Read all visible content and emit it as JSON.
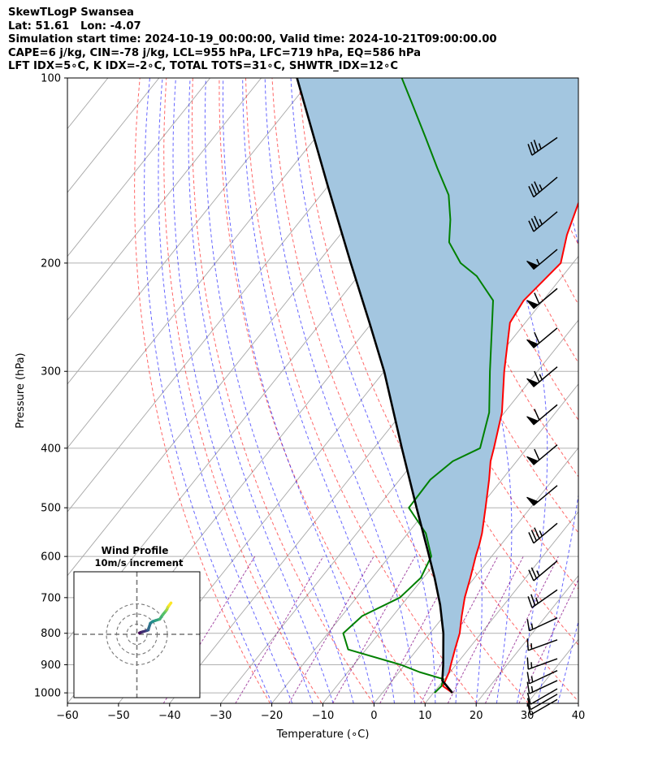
{
  "header": {
    "line1": "SkewTLogP Swansea",
    "line2": "Lat: 51.61   Lon: -4.07",
    "line3": "Simulation start time: 2024-10-19_00:00:00, Valid time: 2024-10-21T09:00:00.00",
    "line4": "CAPE=6 j/kg, CIN=-78 j/kg, LCL=955 hPa, LFC=719 hPa, EQ=586 hPa",
    "line5": "LFT IDX=5∘C, K IDX=-2∘C, TOTAL TOTS=31∘C, SHWTR_IDX=12∘C"
  },
  "colors": {
    "temperature": "#ff0000",
    "dewpoint": "#008000",
    "parcel": "#000000",
    "cape_fill": "#a3c6e0",
    "dry_adiabat": "#ff0000",
    "moist_adiabat": "#0000ff",
    "mixing_ratio": "#800080",
    "isotherm": "#999999"
  },
  "chart_data": {
    "type": "skew-t",
    "xlabel": "Temperature (∘C)",
    "ylabel": "Pressure (hPa)",
    "xlim": [
      -60,
      40
    ],
    "ylim": [
      1040,
      100
    ],
    "x_ticks": [
      "−60",
      "−50",
      "−40",
      "−30",
      "−20",
      "−10",
      "0",
      "10",
      "20",
      "30",
      "40"
    ],
    "x_tick_values": [
      -60,
      -50,
      -40,
      -30,
      -20,
      -10,
      0,
      10,
      20,
      30,
      40
    ],
    "y_ticks": [
      "100",
      "200",
      "300",
      "400",
      "500",
      "600",
      "700",
      "800",
      "900",
      "1000"
    ],
    "y_tick_values": [
      100,
      200,
      300,
      400,
      500,
      600,
      700,
      800,
      900,
      1000
    ],
    "grid": true,
    "series": [
      {
        "key": "temperature",
        "points": [
          [
            1000,
            13.7
          ],
          [
            975,
            10.8
          ],
          [
            950,
            10.3
          ],
          [
            925,
            9.8
          ],
          [
            900,
            9.0
          ],
          [
            850,
            7.4
          ],
          [
            800,
            5.8
          ],
          [
            750,
            3.5
          ],
          [
            700,
            1.2
          ],
          [
            650,
            -0.8
          ],
          [
            600,
            -3.1
          ],
          [
            575,
            -4.2
          ],
          [
            550,
            -5.5
          ],
          [
            500,
            -8.8
          ],
          [
            450,
            -12.5
          ],
          [
            420,
            -15.1
          ],
          [
            400,
            -16.5
          ],
          [
            350,
            -20.5
          ],
          [
            300,
            -26.5
          ],
          [
            250,
            -33.0
          ],
          [
            230,
            -33.8
          ],
          [
            200,
            -32.4
          ],
          [
            180,
            -35.6
          ],
          [
            160,
            -38.3
          ],
          [
            140,
            -40.8
          ],
          [
            125,
            -43.4
          ],
          [
            110,
            -44.9
          ],
          [
            100,
            -45.7
          ]
        ]
      },
      {
        "key": "dewpoint",
        "points": [
          [
            1000,
            10.2
          ],
          [
            975,
            10.5
          ],
          [
            950,
            9.8
          ],
          [
            925,
            4.0
          ],
          [
            900,
            -0.8
          ],
          [
            850,
            -13.5
          ],
          [
            800,
            -17.0
          ],
          [
            750,
            -16.0
          ],
          [
            700,
            -11.5
          ],
          [
            650,
            -10.5
          ],
          [
            600,
            -11.8
          ],
          [
            550,
            -16.5
          ],
          [
            500,
            -23.8
          ],
          [
            450,
            -24.0
          ],
          [
            420,
            -22.5
          ],
          [
            400,
            -19.2
          ],
          [
            350,
            -23.0
          ],
          [
            300,
            -29.3
          ],
          [
            250,
            -36.5
          ],
          [
            230,
            -39.8
          ],
          [
            210,
            -46.8
          ],
          [
            200,
            -52.0
          ],
          [
            185,
            -57.5
          ],
          [
            170,
            -60.8
          ],
          [
            155,
            -65.0
          ],
          [
            140,
            -71.5
          ],
          [
            125,
            -78.5
          ],
          [
            110,
            -86.5
          ],
          [
            100,
            -92.5
          ]
        ]
      },
      {
        "key": "parcel",
        "points": [
          [
            1000,
            13.7
          ],
          [
            955,
            9.8
          ],
          [
            900,
            7.5
          ],
          [
            800,
            2.6
          ],
          [
            719,
            -2.5
          ],
          [
            650,
            -7.8
          ],
          [
            586,
            -13.5
          ],
          [
            500,
            -22.3
          ],
          [
            400,
            -34.5
          ],
          [
            300,
            -50.0
          ],
          [
            250,
            -60.5
          ],
          [
            200,
            -73.5
          ],
          [
            150,
            -90.0
          ],
          [
            100,
            -113.0
          ]
        ]
      }
    ],
    "wind_barbs": [
      {
        "p": 1025,
        "speed_kt": 10,
        "dir_deg": 240
      },
      {
        "p": 1005,
        "speed_kt": 10,
        "dir_deg": 240
      },
      {
        "p": 985,
        "speed_kt": 10,
        "dir_deg": 240
      },
      {
        "p": 955,
        "speed_kt": 15,
        "dir_deg": 245
      },
      {
        "p": 920,
        "speed_kt": 15,
        "dir_deg": 245
      },
      {
        "p": 880,
        "speed_kt": 15,
        "dir_deg": 250
      },
      {
        "p": 820,
        "speed_kt": 15,
        "dir_deg": 250
      },
      {
        "p": 755,
        "speed_kt": 15,
        "dir_deg": 245
      },
      {
        "p": 680,
        "speed_kt": 25,
        "dir_deg": 235
      },
      {
        "p": 610,
        "speed_kt": 25,
        "dir_deg": 230
      },
      {
        "p": 530,
        "speed_kt": 35,
        "dir_deg": 230
      },
      {
        "p": 460,
        "speed_kt": 50,
        "dir_deg": 230
      },
      {
        "p": 395,
        "speed_kt": 60,
        "dir_deg": 230
      },
      {
        "p": 340,
        "speed_kt": 60,
        "dir_deg": 230
      },
      {
        "p": 295,
        "speed_kt": 65,
        "dir_deg": 230
      },
      {
        "p": 255,
        "speed_kt": 60,
        "dir_deg": 230
      },
      {
        "p": 220,
        "speed_kt": 60,
        "dir_deg": 230
      },
      {
        "p": 190,
        "speed_kt": 55,
        "dir_deg": 230
      },
      {
        "p": 165,
        "speed_kt": 35,
        "dir_deg": 230
      },
      {
        "p": 145,
        "speed_kt": 35,
        "dir_deg": 230
      },
      {
        "p": 125,
        "speed_kt": 35,
        "dir_deg": 235
      }
    ],
    "hodograph": {
      "title": "Wind Profile",
      "subtitle": "10m/s increment",
      "ring_spacing_ms": 10,
      "rings": 3,
      "points_ms": [
        [
          2.6,
          1.3
        ],
        [
          3.9,
          1.9
        ],
        [
          5.5,
          2.4
        ],
        [
          9.8,
          3.7
        ],
        [
          11.2,
          4.2
        ],
        [
          11.6,
          5.8
        ],
        [
          13.3,
          10.9
        ],
        [
          15.5,
          12.6
        ],
        [
          18.4,
          13.6
        ],
        [
          22.5,
          14.9
        ],
        [
          25.6,
          19.4
        ],
        [
          28.3,
          22.7
        ],
        [
          29.5,
          24.3
        ],
        [
          30.4,
          26.5
        ],
        [
          31.7,
          28.4
        ],
        [
          33.6,
          30.9
        ]
      ]
    }
  }
}
